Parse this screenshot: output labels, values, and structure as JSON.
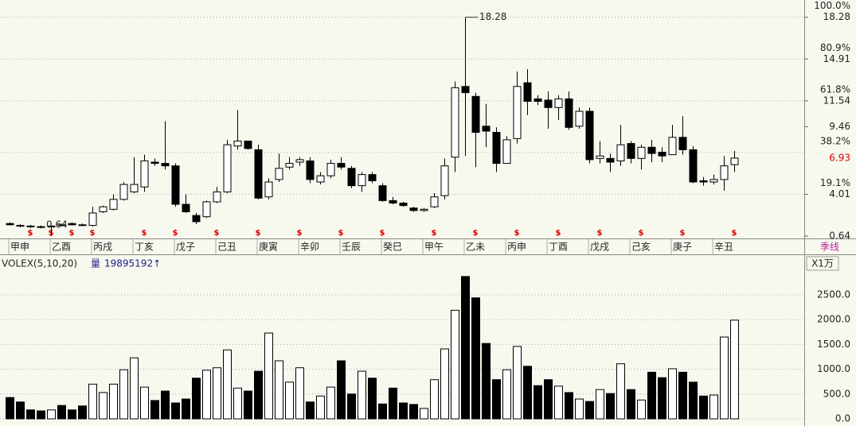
{
  "chart_data": [
    {
      "type": "candlestick",
      "period": "季线",
      "categories": [
        "甲申",
        null,
        null,
        null,
        "乙酉",
        null,
        null,
        null,
        "丙戌",
        null,
        null,
        null,
        "丁亥",
        null,
        null,
        null,
        "戊子",
        null,
        null,
        null,
        "己丑",
        null,
        null,
        null,
        "庚寅",
        null,
        null,
        null,
        "辛卯",
        null,
        null,
        null,
        "壬辰",
        null,
        null,
        null,
        "癸巳",
        null,
        null,
        null,
        "甲午",
        null,
        null,
        null,
        "乙未",
        null,
        null,
        null,
        "丙申",
        null,
        null,
        null,
        "丁酉",
        null,
        null,
        null,
        "戊戌",
        null,
        null,
        null,
        "己亥",
        null,
        null,
        null,
        "庚子",
        null,
        null,
        null,
        "辛丑",
        null,
        null
      ],
      "open": [
        1.65,
        1.5,
        1.45,
        1.4,
        1.4,
        1.55,
        1.65,
        1.55,
        1.5,
        2.6,
        2.8,
        3.6,
        4.2,
        4.6,
        6.6,
        6.5,
        6.3,
        3.2,
        2.3,
        2.2,
        3.4,
        4.2,
        7.9,
        8.3,
        7.6,
        3.8,
        5.2,
        6.2,
        6.6,
        6.7,
        5.0,
        5.5,
        6.5,
        6.1,
        4.7,
        5.6,
        4.7,
        3.5,
        3.3,
        2.9,
        2.7,
        3.0,
        3.9,
        7.0,
        12.7,
        11.9,
        9.5,
        9.0,
        6.5,
        8.5,
        13.0,
        11.7,
        11.6,
        11.0,
        11.7,
        9.5,
        10.7,
        6.9,
        6.9,
        6.7,
        8.1,
        6.9,
        7.8,
        7.4,
        7.2,
        8.6,
        7.6,
        5.1,
        5.0,
        5.2,
        6.4
      ],
      "high": [
        1.75,
        1.6,
        1.55,
        1.5,
        1.5,
        1.65,
        1.75,
        1.65,
        3.0,
        3.1,
        4.0,
        5.0,
        7.0,
        7.2,
        6.9,
        9.9,
        6.5,
        4.0,
        2.5,
        3.5,
        4.6,
        8.4,
        10.8,
        8.3,
        8.0,
        5.3,
        7.3,
        7.0,
        7.0,
        7.0,
        5.8,
        6.8,
        7.0,
        6.3,
        5.8,
        5.8,
        4.9,
        3.8,
        3.4,
        3.0,
        2.9,
        4.1,
        6.9,
        13.1,
        18.28,
        12.2,
        11.3,
        9.4,
        8.7,
        13.9,
        14.1,
        12.0,
        12.3,
        12.0,
        12.3,
        11.0,
        11.0,
        8.3,
        7.3,
        9.6,
        8.3,
        8.0,
        8.4,
        7.8,
        9.6,
        10.3,
        7.9,
        5.4,
        5.6,
        7.1,
        7.5
      ],
      "low": [
        1.5,
        1.35,
        1.3,
        1.25,
        0.64,
        1.4,
        1.5,
        1.45,
        1.4,
        2.5,
        2.7,
        3.5,
        4.1,
        4.2,
        6.3,
        6.0,
        3.0,
        2.5,
        1.6,
        2.1,
        3.3,
        4.1,
        7.6,
        7.6,
        3.6,
        3.6,
        5.0,
        6.0,
        6.3,
        4.9,
        4.8,
        5.3,
        6.0,
        4.5,
        4.2,
        4.9,
        3.4,
        3.2,
        3.0,
        2.6,
        2.6,
        2.9,
        3.6,
        5.8,
        7.1,
        6.2,
        7.8,
        5.8,
        6.5,
        8.1,
        10.4,
        11.2,
        9.3,
        10.0,
        9.2,
        9.3,
        6.5,
        6.5,
        5.8,
        6.3,
        6.5,
        6.0,
        6.6,
        6.6,
        7.2,
        7.2,
        4.9,
        4.7,
        4.8,
        4.3,
        5.8
      ],
      "close": [
        1.55,
        1.45,
        1.4,
        1.35,
        1.45,
        1.5,
        1.55,
        1.5,
        2.5,
        3.0,
        3.6,
        4.8,
        4.8,
        6.7,
        6.5,
        6.3,
        3.2,
        2.6,
        1.8,
        3.4,
        4.2,
        8.0,
        8.3,
        7.7,
        3.7,
        5.0,
        6.1,
        6.5,
        6.8,
        5.2,
        5.5,
        6.5,
        6.2,
        4.7,
        5.6,
        5.1,
        3.5,
        3.3,
        3.1,
        2.7,
        2.8,
        3.8,
        6.3,
        12.6,
        12.2,
        9.0,
        9.1,
        6.5,
        8.4,
        12.7,
        11.5,
        11.5,
        11.0,
        11.7,
        9.4,
        10.7,
        6.8,
        7.1,
        6.6,
        8.0,
        6.9,
        7.8,
        7.3,
        7.1,
        8.6,
        7.6,
        5.0,
        5.0,
        5.2,
        6.3,
        6.93
      ],
      "ylim": [
        0.45,
        19.35
      ],
      "yticks": [
        0.64,
        4.01,
        9.46,
        11.54,
        14.91,
        18.28
      ],
      "fib_levels": [
        {
          "value": 18.28,
          "label": "100.0%"
        },
        {
          "value": 14.91,
          "label": "80.9%"
        },
        {
          "value": 11.54,
          "label": "61.8%"
        },
        {
          "value": 7.38,
          "label": "38.2%"
        },
        {
          "value": 4.01,
          "label": "19.1%"
        }
      ],
      "grid": true,
      "dividend_symbol": "$",
      "up_color": "#ffffff",
      "down_color": "#000000",
      "edge_color": "#000000",
      "last_color": "#e00000"
    },
    {
      "type": "volume",
      "indicator": "VOLEX(5,10,20)",
      "series_label": "量",
      "last_value_label": "19895192↑",
      "unit": "X1万",
      "values": [
        430,
        340,
        180,
        160,
        180,
        270,
        180,
        260,
        700,
        530,
        700,
        990,
        1230,
        640,
        370,
        560,
        320,
        400,
        820,
        980,
        1030,
        1390,
        620,
        560,
        960,
        1730,
        1170,
        740,
        1030,
        340,
        460,
        640,
        1170,
        500,
        960,
        820,
        300,
        620,
        320,
        290,
        210,
        790,
        1410,
        2190,
        2870,
        2440,
        1520,
        790,
        990,
        1460,
        1060,
        670,
        790,
        660,
        530,
        400,
        350,
        590,
        510,
        1110,
        590,
        380,
        940,
        830,
        1010,
        940,
        740,
        460,
        480,
        1650,
        1989.5192
      ],
      "ylim": [
        0,
        3285
      ],
      "yticks": [
        {
          "value": 0,
          "label": "0.0"
        },
        {
          "value": 500,
          "label": "500.0"
        },
        {
          "value": 1000,
          "label": "1000.0"
        },
        {
          "value": 1500,
          "label": "1500.0"
        },
        {
          "value": 2000,
          "label": "2000.0"
        },
        {
          "value": 2500,
          "label": "2500.0"
        }
      ],
      "grid": true
    }
  ]
}
